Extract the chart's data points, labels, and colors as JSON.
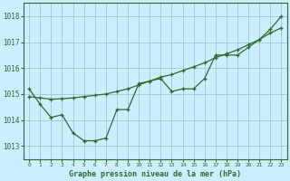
{
  "title": "Graphe pression niveau de la mer (hPa)",
  "bg_color": "#cceeff",
  "grid_color": "#99cccc",
  "line_color": "#2d6b2d",
  "xlim": [
    -0.5,
    23.5
  ],
  "ylim": [
    1012.5,
    1018.5
  ],
  "yticks": [
    1013,
    1014,
    1015,
    1016,
    1017,
    1018
  ],
  "xticks": [
    0,
    1,
    2,
    3,
    4,
    5,
    6,
    7,
    8,
    9,
    10,
    11,
    12,
    13,
    14,
    15,
    16,
    17,
    18,
    19,
    20,
    21,
    22,
    23
  ],
  "jagged_x": [
    0,
    1,
    2,
    3,
    4,
    5,
    6,
    7,
    8,
    9,
    10,
    11,
    12,
    13,
    14,
    15,
    16,
    17,
    18,
    19,
    20,
    21,
    22,
    23
  ],
  "jagged_y": [
    1015.2,
    1014.6,
    1014.1,
    1014.2,
    1013.5,
    1013.2,
    1013.2,
    1013.3,
    1014.4,
    1014.4,
    1015.4,
    1015.5,
    1015.6,
    1015.1,
    1015.2,
    1015.2,
    1015.6,
    1016.5,
    1016.5,
    1016.5,
    1016.8,
    1017.1,
    1017.5,
    1018.0
  ],
  "smooth_x": [
    0,
    1,
    2,
    3,
    4,
    5,
    6,
    7,
    8,
    9,
    10,
    11,
    12,
    13,
    14,
    15,
    16,
    17,
    18,
    19,
    20,
    21,
    22,
    23
  ],
  "smooth_y": [
    1014.9,
    1014.85,
    1014.8,
    1014.82,
    1014.85,
    1014.9,
    1014.95,
    1015.0,
    1015.1,
    1015.2,
    1015.35,
    1015.5,
    1015.65,
    1015.75,
    1015.9,
    1016.05,
    1016.2,
    1016.4,
    1016.55,
    1016.7,
    1016.9,
    1017.1,
    1017.35,
    1017.55
  ]
}
